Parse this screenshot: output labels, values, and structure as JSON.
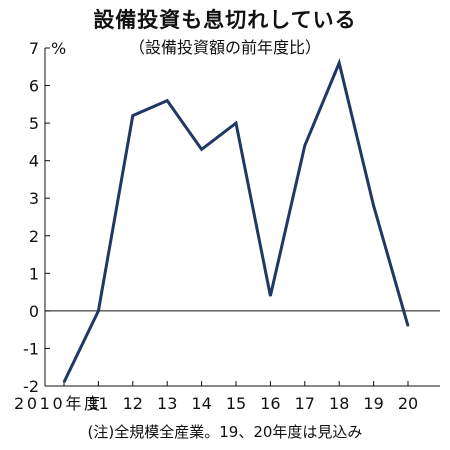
{
  "chart_data": {
    "type": "line",
    "title": "設備投資も息切れしている",
    "subtitle": "（設備投資額の前年度比）",
    "y_unit": "%",
    "x": [
      "2010年度",
      "11",
      "12",
      "13",
      "14",
      "15",
      "16",
      "17",
      "18",
      "19",
      "20"
    ],
    "series": [
      {
        "values": [
          -1.9,
          0.0,
          5.2,
          5.6,
          4.3,
          5.0,
          0.4,
          4.4,
          6.6,
          2.8,
          -0.4
        ]
      }
    ],
    "ylim": [
      -2,
      7
    ],
    "yticks": [
      -2,
      -1,
      0,
      1,
      2,
      3,
      4,
      5,
      6,
      7
    ],
    "zero_line": true,
    "grid": false,
    "line_color": "#1f3864",
    "note": "(注)全規模全産業。19、20年度は見込み"
  }
}
